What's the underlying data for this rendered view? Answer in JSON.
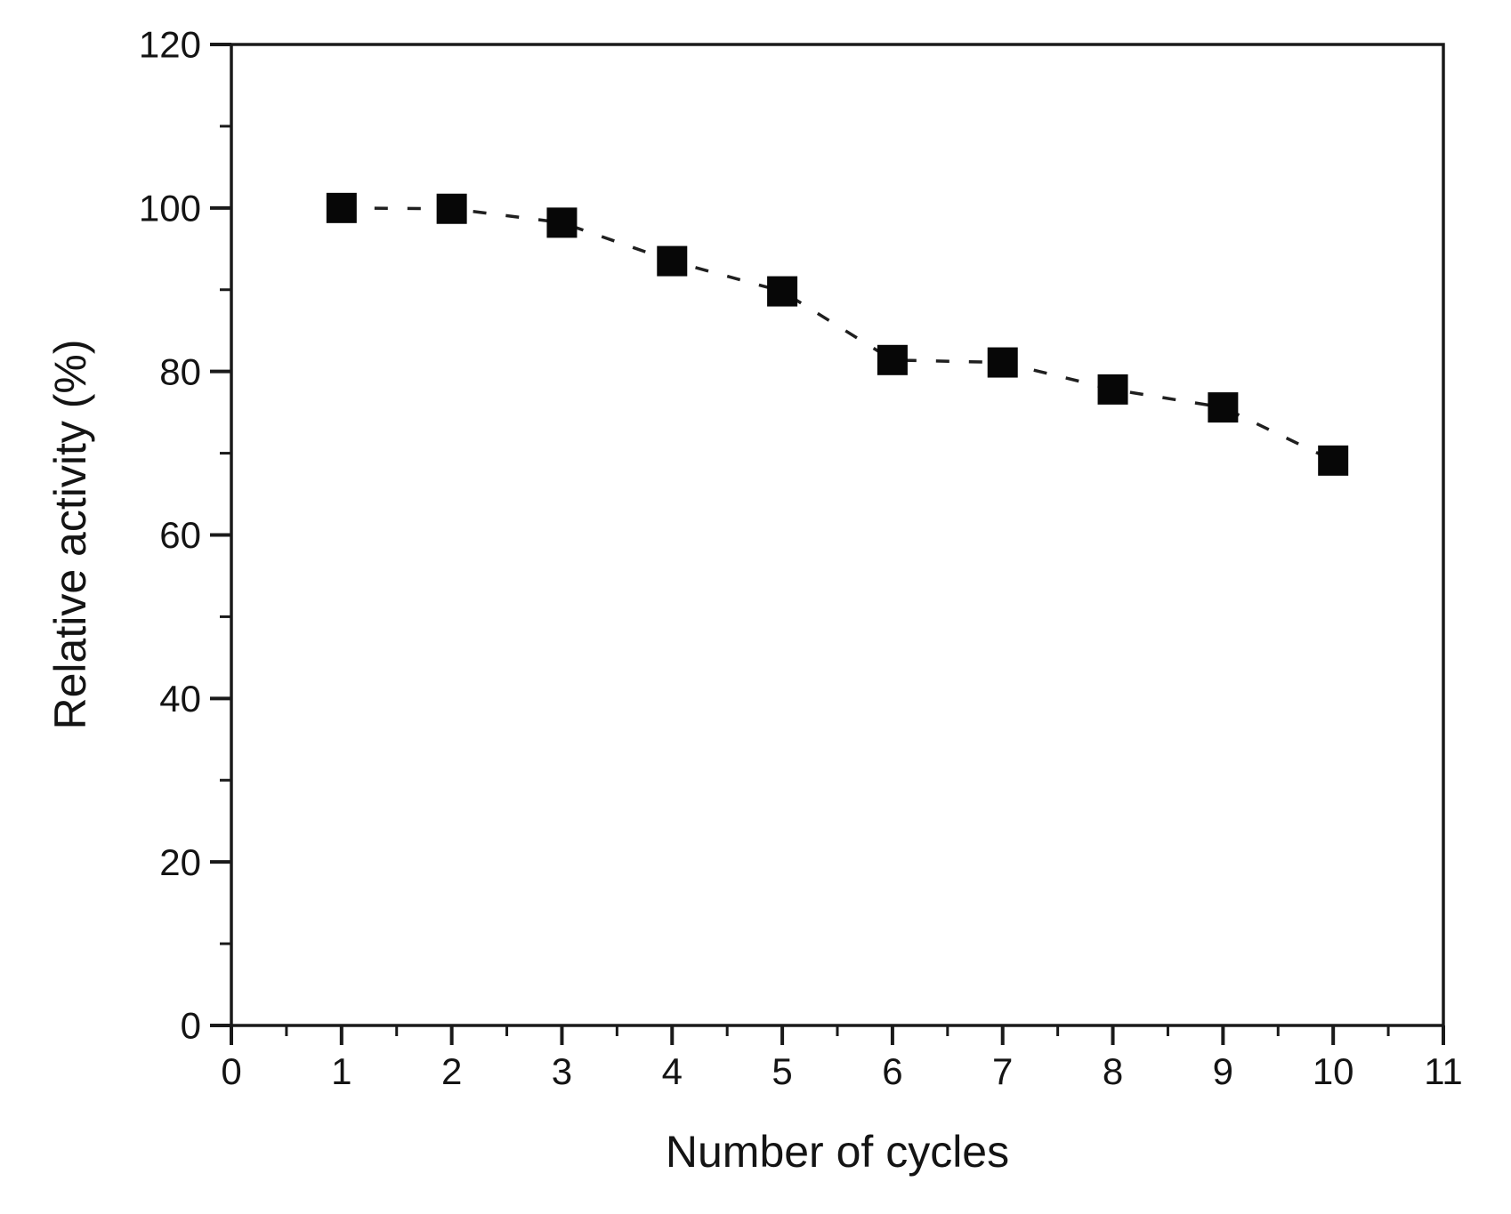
{
  "figure": {
    "background": "#ffffff"
  },
  "chart_data": {
    "type": "line",
    "title": "",
    "xlabel": "Number of cycles",
    "ylabel": "Relative activity (%)",
    "x": [
      1,
      2,
      3,
      4,
      5,
      6,
      7,
      8,
      9,
      10
    ],
    "values": [
      100,
      99.9,
      98.2,
      93.5,
      89.8,
      81.4,
      81.1,
      77.8,
      75.6,
      69.1
    ],
    "xlim": [
      0,
      11
    ],
    "ylim": [
      0,
      120
    ],
    "x_major_ticks": [
      0,
      1,
      2,
      3,
      4,
      5,
      6,
      7,
      8,
      9,
      10,
      11
    ],
    "x_minor_step": 0.5,
    "y_major_ticks": [
      0,
      20,
      40,
      60,
      80,
      100,
      120
    ],
    "y_minor_step": 10,
    "grid": "off",
    "legend": "none",
    "marker": "filled-square",
    "line_style": "dashed",
    "axis_color": "#1a1a1a",
    "line_color": "#1f1f1f",
    "marker_color": "#070707"
  }
}
